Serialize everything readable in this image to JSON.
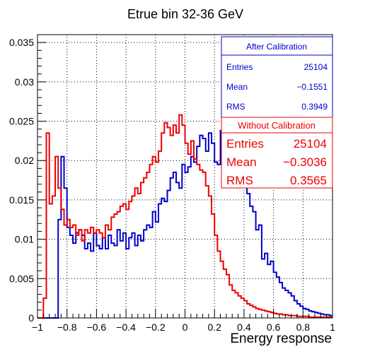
{
  "chart_data": {
    "type": "line",
    "title": "Etrue bin 32-36 GeV",
    "xlabel": "Energy response",
    "ylabel": "",
    "xlim": [
      -1,
      1
    ],
    "ylim": [
      0,
      0.036
    ],
    "x_ticks": [
      -1,
      -0.8,
      -0.6,
      -0.4,
      -0.2,
      0,
      0.2,
      0.4,
      0.6,
      0.8,
      1
    ],
    "x_tick_labels": [
      "−1",
      "−0.8",
      "−0.6",
      "−0.4",
      "−0.2",
      "0",
      "0.2",
      "0.4",
      "0.6",
      "0.8",
      "1"
    ],
    "y_ticks": [
      0,
      0.005,
      0.01,
      0.015,
      0.02,
      0.025,
      0.03,
      0.035
    ],
    "y_tick_labels": [
      "0",
      "0.005",
      "0.01",
      "0.015",
      "0.02",
      "0.025",
      "0.03",
      "0.035"
    ],
    "grid": true,
    "histogram_binning": {
      "x_min": -1,
      "x_max": 1,
      "bin_width": 0.02
    },
    "series": [
      {
        "name": "After Calibration",
        "color": "#0000cc",
        "values": [
          0,
          0,
          0,
          0,
          0,
          0,
          0,
          0.0125,
          0.0205,
          0.0165,
          0.0115,
          0.0105,
          0.0095,
          0.0108,
          0.0112,
          0.0105,
          0.0088,
          0.0095,
          0.0085,
          0.0108,
          0.0092,
          0.0088,
          0.0102,
          0.0088,
          0.0105,
          0.0095,
          0.0092,
          0.0112,
          0.0098,
          0.0108,
          0.0088,
          0.0102,
          0.0108,
          0.0092,
          0.0105,
          0.0098,
          0.0112,
          0.0118,
          0.0115,
          0.0135,
          0.0122,
          0.0145,
          0.0152,
          0.0148,
          0.0162,
          0.0178,
          0.0185,
          0.0172,
          0.0165,
          0.0195,
          0.0185,
          0.0192,
          0.0205,
          0.0198,
          0.0218,
          0.0232,
          0.0228,
          0.0212,
          0.0235,
          0.0222,
          0.0198,
          0.0195,
          0.0238,
          0.0242,
          0.0225,
          0.0218,
          0.0208,
          0.0198,
          0.0205,
          0.0192,
          0.0175,
          0.0158,
          0.0142,
          0.0135,
          0.0112,
          0.0118,
          0.0075,
          0.0082,
          0.0068,
          0.0072,
          0.0058,
          0.0052,
          0.0045,
          0.0038,
          0.0035,
          0.0032,
          0.0028,
          0.0022,
          0.0018,
          0.0015,
          0.0012,
          0.0011,
          0.0009,
          0.0008,
          0.0007,
          0.0006,
          0.0005,
          0.0004,
          0.0004,
          0.0003
        ],
        "stats": {
          "label": "After Calibration",
          "entries": "25104",
          "mean": "−0.1551",
          "rms": "0.3949"
        }
      },
      {
        "name": "Without Calibration",
        "color": "#ee0000",
        "values": [
          0,
          0,
          0.0025,
          0.0235,
          0.0145,
          0.0155,
          0.0205,
          0.0165,
          0.0138,
          0.0118,
          0.0125,
          0.0115,
          0.0118,
          0.0105,
          0.0112,
          0.0098,
          0.0112,
          0.0108,
          0.0115,
          0.0108,
          0.0112,
          0.0108,
          0.0102,
          0.0118,
          0.0112,
          0.0128,
          0.0132,
          0.0135,
          0.0142,
          0.0145,
          0.0138,
          0.0148,
          0.0155,
          0.0165,
          0.0158,
          0.0172,
          0.0178,
          0.0185,
          0.0195,
          0.0205,
          0.0198,
          0.0212,
          0.0235,
          0.0248,
          0.0242,
          0.0232,
          0.0245,
          0.0235,
          0.0258,
          0.0245,
          0.0222,
          0.0208,
          0.0225,
          0.0202,
          0.0195,
          0.0188,
          0.0185,
          0.0168,
          0.0155,
          0.0132,
          0.0105,
          0.0085,
          0.0072,
          0.0062,
          0.0055,
          0.0042,
          0.0035,
          0.0032,
          0.0028,
          0.0025,
          0.0022,
          0.0018,
          0.0016,
          0.0014,
          0.0012,
          0.0011,
          0.001,
          0.0009,
          0.0008,
          0.0007,
          0.0006,
          0.0005,
          0.0005,
          0.0004,
          0.0004,
          0.0003,
          0.0003,
          0.0003,
          0.0002,
          0.0002,
          0.0002,
          0.0002,
          0.0001,
          0.0001,
          0.0001,
          0.0001,
          0.0001,
          0.0001,
          0.0001,
          0.0001
        ],
        "stats": {
          "label": "Without Calibration",
          "entries": "25104",
          "mean": "−0.3036",
          "rms": "0.3565"
        }
      }
    ],
    "stats_labels": {
      "entries": "Entries",
      "mean": "Mean",
      "rms": "RMS"
    }
  }
}
